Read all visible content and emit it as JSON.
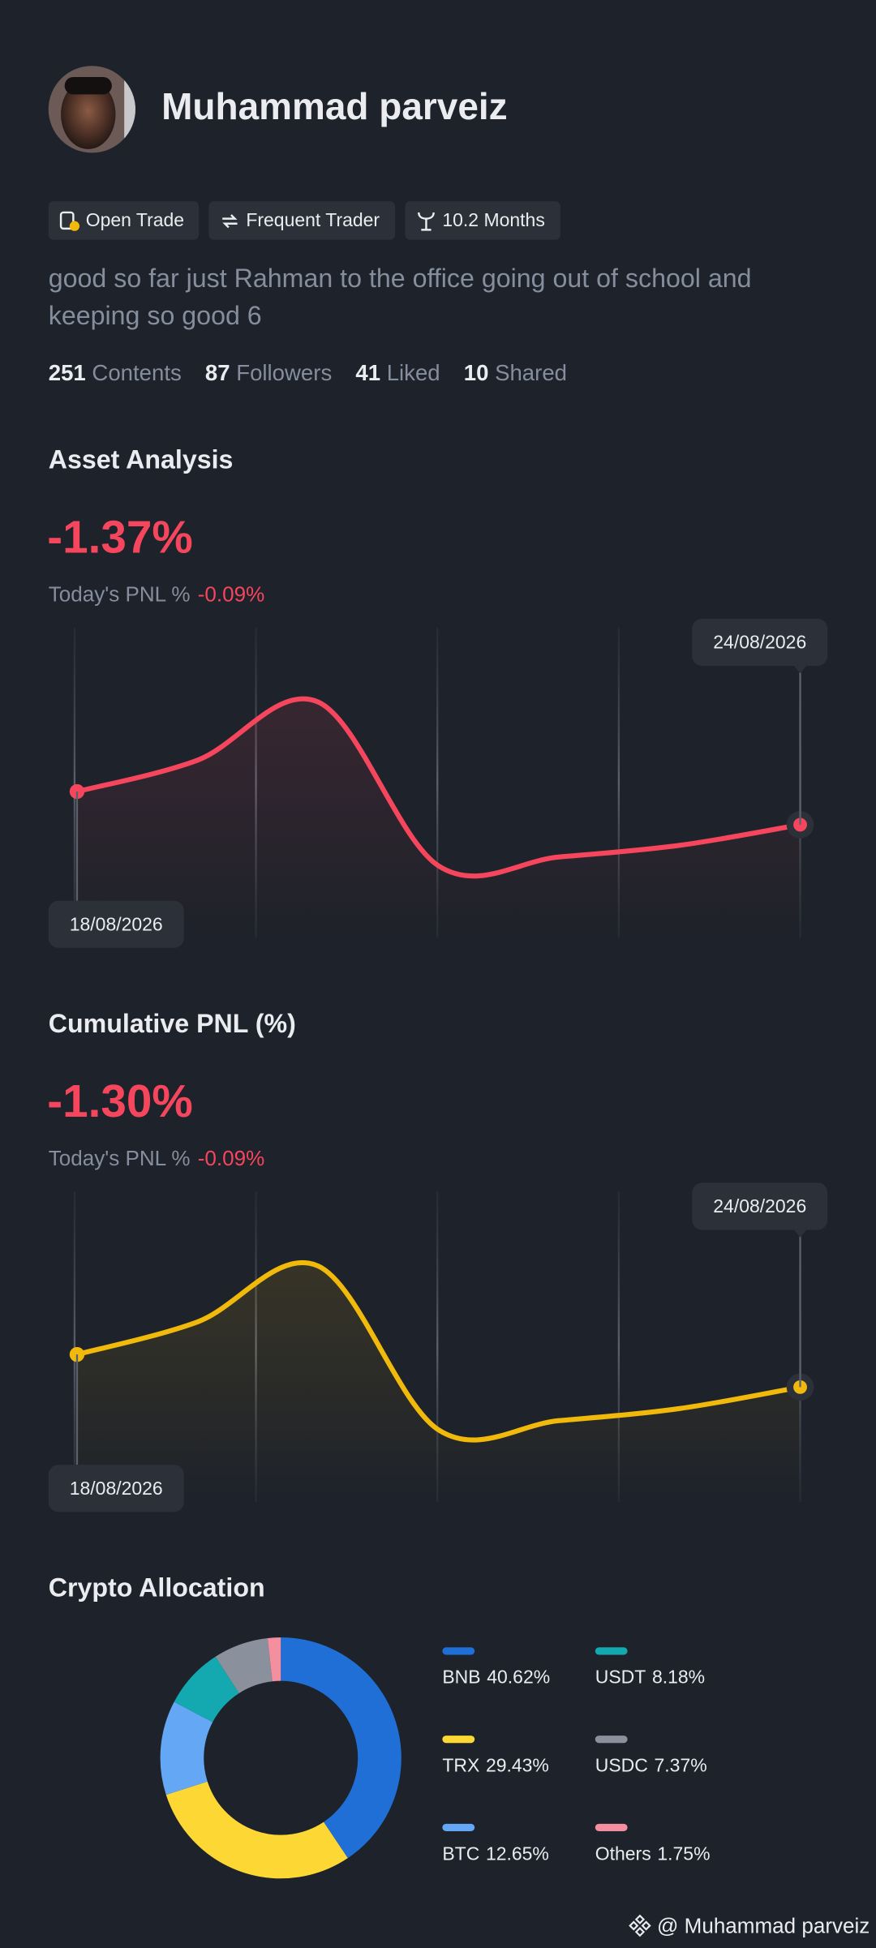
{
  "profile": {
    "name": "Muhammad parveiz",
    "badges": [
      "Open Trade",
      "Frequent Trader",
      "10.2 Months"
    ],
    "bio": "good so far just Rahman to the office going out of school and keeping so good 6",
    "stats": [
      {
        "value": "251",
        "label": "Contents"
      },
      {
        "value": "87",
        "label": "Followers"
      },
      {
        "value": "41",
        "label": "Liked"
      },
      {
        "value": "10",
        "label": "Shared"
      }
    ]
  },
  "chart_data": [
    {
      "type": "line",
      "title": "Asset Analysis",
      "headline": "-1.37%",
      "pnl_label": "Today's PNL %",
      "pnl_value": "-0.09%",
      "categories": [
        "18/08/2026",
        null,
        null,
        null,
        null,
        null,
        "24/08/2026"
      ],
      "series": [
        {
          "color": "#f6465d",
          "values": [
            -1.0,
            -0.65,
            0,
            -1.83,
            -1.73,
            -1.6,
            -1.37
          ]
        }
      ]
    },
    {
      "type": "line",
      "title": "Cumulative PNL (%)",
      "headline": "-1.30%",
      "pnl_label": "Today's PNL %",
      "pnl_value": "-0.09%",
      "categories": [
        "18/08/2026",
        null,
        null,
        null,
        null,
        null,
        "24/08/2026"
      ],
      "series": [
        {
          "color": "#f0b90b",
          "values": [
            -0.95,
            -0.6,
            0,
            -1.76,
            -1.66,
            -1.53,
            -1.3
          ]
        }
      ]
    },
    {
      "type": "donut",
      "title": "Crypto Allocation",
      "categories": [
        "BNB",
        "TRX",
        "BTC",
        "USDT",
        "USDC",
        "Others"
      ],
      "values": [
        40.62,
        29.43,
        12.65,
        8.18,
        7.37,
        1.75
      ],
      "value_labels": [
        "40.62%",
        "29.43%",
        "12.65%",
        "8.18%",
        "7.37%",
        "1.75%"
      ],
      "colors": [
        "#1f6fd6",
        "#fdd835",
        "#64a8f5",
        "#14a8b0",
        "#8a919c",
        "#f48fa0"
      ]
    }
  ],
  "footer": "@ Muhammad parveiz"
}
